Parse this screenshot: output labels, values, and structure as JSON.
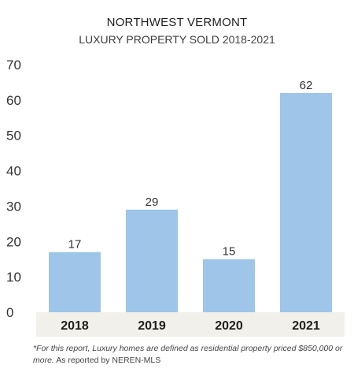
{
  "title": "NORTHWEST VERMONT",
  "subtitle": {
    "main": "LUXURY PROPERTY SOLD",
    "range": "2018-2021"
  },
  "footnote": {
    "italic": "*For this report, Luxury homes are defined as residential property priced $850,000 or more.",
    "plain": "As reported by NEREN-MLS"
  },
  "colors": {
    "bar": "#9fc5e8",
    "axis_band": "#f1f0ea"
  },
  "chart_data": {
    "type": "bar",
    "title": "NORTHWEST VERMONT",
    "subtitle": "LUXURY PROPERTY SOLD 2018-2021",
    "categories": [
      "2018",
      "2019",
      "2020",
      "2021"
    ],
    "values": [
      17,
      29,
      15,
      62
    ],
    "ylim": [
      0,
      70
    ],
    "yticks": [
      0,
      10,
      20,
      30,
      40,
      50,
      60,
      70
    ],
    "grid": false,
    "data_labels": true
  }
}
